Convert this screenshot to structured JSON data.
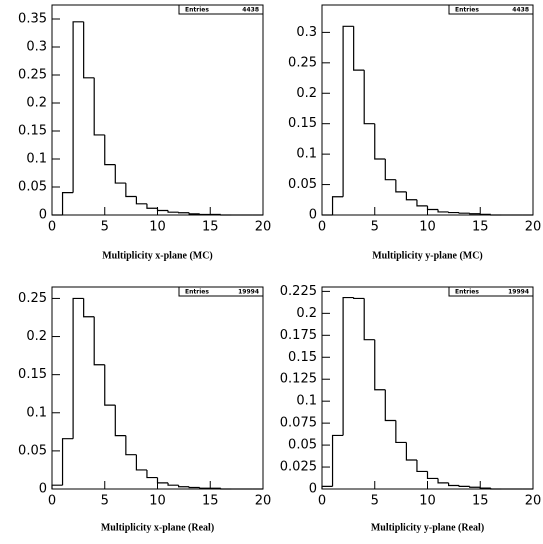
{
  "chart_data": [
    {
      "type": "histogram",
      "xlabel": "Multiplicity x-plane (MC)",
      "stats": {
        "label": "Entries",
        "value": 4438
      },
      "bins": [
        0,
        1,
        2,
        3,
        4,
        5,
        6,
        7,
        8,
        9,
        10,
        11,
        12,
        13,
        14,
        15,
        16,
        17,
        18,
        19,
        20
      ],
      "values": [
        0,
        0.04,
        0.345,
        0.245,
        0.143,
        0.09,
        0.057,
        0.033,
        0.02,
        0.012,
        0.008,
        0.005,
        0.004,
        0.002,
        0.001,
        0.001,
        0,
        0,
        0,
        0
      ],
      "xlim": [
        0,
        20
      ],
      "xticks": [
        0,
        5,
        10,
        15,
        20
      ],
      "ylim": [
        0,
        0.375
      ],
      "yticks": [
        0,
        0.05,
        0.1,
        0.15,
        0.2,
        0.25,
        0.3,
        0.35
      ],
      "color": "#000000"
    },
    {
      "type": "histogram",
      "xlabel": "Multiplicity y-plane (MC)",
      "stats": {
        "label": "Entries",
        "value": 4438
      },
      "bins": [
        0,
        1,
        2,
        3,
        4,
        5,
        6,
        7,
        8,
        9,
        10,
        11,
        12,
        13,
        14,
        15,
        16,
        17,
        18,
        19,
        20
      ],
      "values": [
        0,
        0.03,
        0.31,
        0.238,
        0.15,
        0.092,
        0.058,
        0.038,
        0.025,
        0.015,
        0.009,
        0.005,
        0.004,
        0.003,
        0.002,
        0.001,
        0,
        0,
        0,
        0
      ],
      "xlim": [
        0,
        20
      ],
      "xticks": [
        0,
        5,
        10,
        15,
        20
      ],
      "ylim": [
        0,
        0.345
      ],
      "yticks": [
        0,
        0.05,
        0.1,
        0.15,
        0.2,
        0.25,
        0.3
      ],
      "color": "#000000"
    },
    {
      "type": "histogram",
      "xlabel": "Multiplicity x-plane (Real)",
      "stats": {
        "label": "Entries",
        "value": 19994
      },
      "bins": [
        0,
        1,
        2,
        3,
        4,
        5,
        6,
        7,
        8,
        9,
        10,
        11,
        12,
        13,
        14,
        15,
        16,
        17,
        18,
        19,
        20
      ],
      "values": [
        0.005,
        0.066,
        0.25,
        0.226,
        0.163,
        0.11,
        0.07,
        0.045,
        0.025,
        0.015,
        0.008,
        0.005,
        0.003,
        0.002,
        0.001,
        0.001,
        0,
        0,
        0,
        0
      ],
      "xlim": [
        0,
        20
      ],
      "xticks": [
        0,
        5,
        10,
        15,
        20
      ],
      "ylim": [
        0,
        0.265
      ],
      "yticks": [
        0,
        0.05,
        0.1,
        0.15,
        0.2,
        0.25
      ],
      "color": "#000000"
    },
    {
      "type": "histogram",
      "xlabel": "Multiplicity y-plane (Real)",
      "stats": {
        "label": "Entries",
        "value": 19994
      },
      "bins": [
        0,
        1,
        2,
        3,
        4,
        5,
        6,
        7,
        8,
        9,
        10,
        11,
        12,
        13,
        14,
        15,
        16,
        17,
        18,
        19,
        20
      ],
      "values": [
        0.003,
        0.061,
        0.218,
        0.217,
        0.17,
        0.113,
        0.078,
        0.053,
        0.033,
        0.02,
        0.012,
        0.007,
        0.004,
        0.003,
        0.002,
        0.001,
        0,
        0,
        0,
        0
      ],
      "xlim": [
        0,
        20
      ],
      "xticks": [
        0,
        5,
        10,
        15,
        20
      ],
      "ylim": [
        0,
        0.23
      ],
      "yticks": [
        0,
        0.025,
        0.05,
        0.075,
        0.1,
        0.125,
        0.15,
        0.175,
        0.2,
        0.225
      ],
      "color": "#000000"
    }
  ]
}
